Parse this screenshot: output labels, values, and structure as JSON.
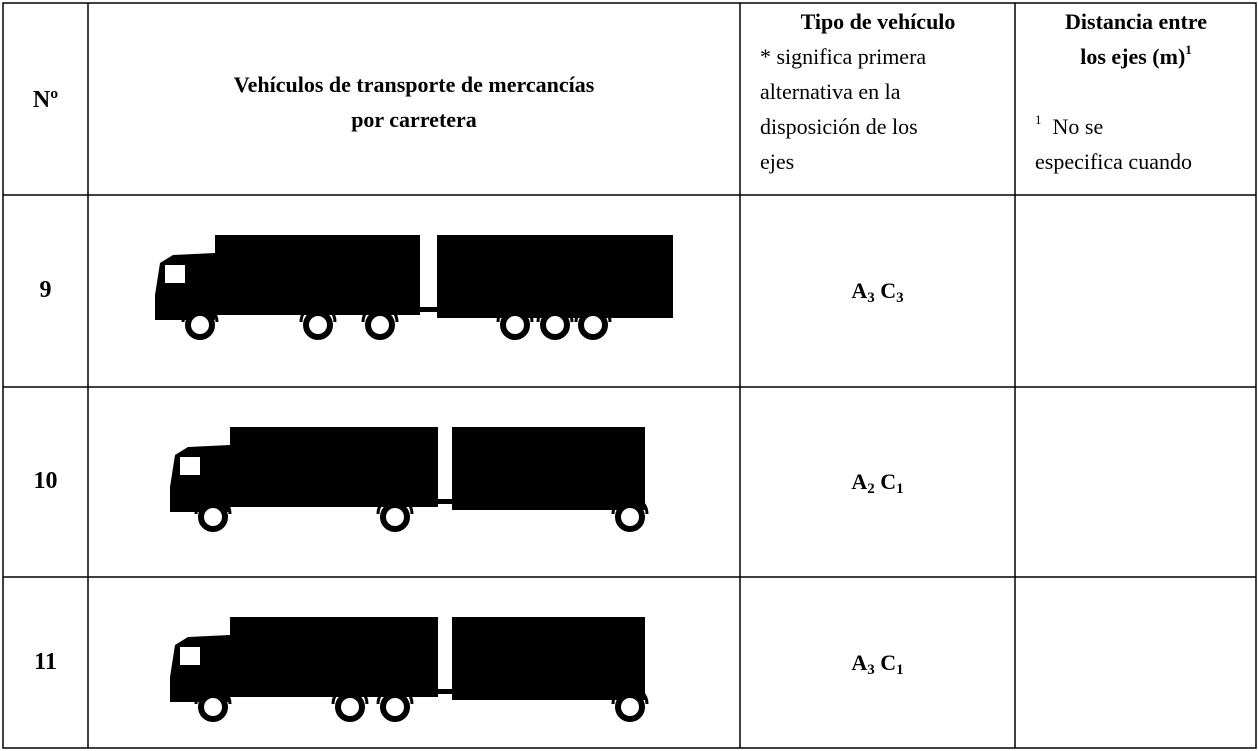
{
  "header": {
    "number": "Nº",
    "vehicles": [
      "Vehículos de transporte de mercancías",
      "por carretera"
    ],
    "type_title": "Tipo de vehículo",
    "type_note": [
      "*  significa primera",
      "alternativa en la",
      "disposición de los",
      "ejes"
    ],
    "distance_title": [
      "Distancia entre",
      "los ejes (m)"
    ],
    "distance_mark": "1",
    "distance_note_mark": "1",
    "distance_note": [
      "No se",
      "especifica cuando"
    ]
  },
  "rows": [
    {
      "number": "9",
      "type": [
        {
          "letter": "A",
          "sub": "3"
        },
        {
          "letter": "C",
          "sub": "3"
        }
      ]
    },
    {
      "number": "10",
      "type": [
        {
          "letter": "A",
          "sub": "2"
        },
        {
          "letter": "C",
          "sub": "1"
        }
      ]
    },
    {
      "number": "11",
      "type": [
        {
          "letter": "A",
          "sub": "3"
        },
        {
          "letter": "C",
          "sub": "1"
        }
      ]
    }
  ]
}
